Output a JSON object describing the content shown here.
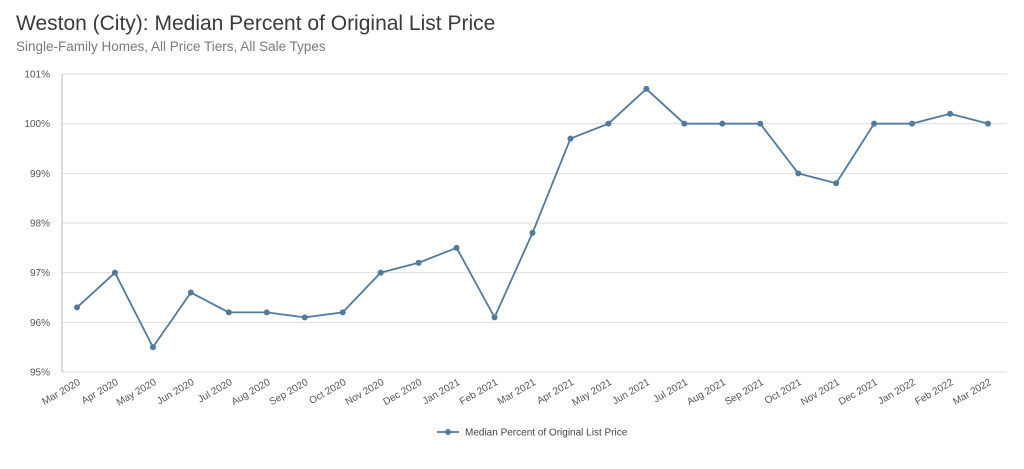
{
  "header": {
    "title": "Weston (City): Median Percent of Original List Price",
    "subtitle": "Single-Family Homes, All Price Tiers, All Sale Types"
  },
  "chart_data": {
    "type": "line",
    "title": "Weston (City): Median Percent of Original List Price",
    "subtitle": "Single-Family Homes, All Price Tiers, All Sale Types",
    "xlabel": "",
    "ylabel": "",
    "categories": [
      "Mar 2020",
      "Apr 2020",
      "May 2020",
      "Jun 2020",
      "Jul 2020",
      "Aug 2020",
      "Sep 2020",
      "Oct 2020",
      "Nov 2020",
      "Dec 2020",
      "Jan 2021",
      "Feb 2021",
      "Mar 2021",
      "Apr 2021",
      "May 2021",
      "Jun 2021",
      "Jul 2021",
      "Aug 2021",
      "Sep 2021",
      "Oct 2021",
      "Nov 2021",
      "Dec 2021",
      "Jan 2022",
      "Feb 2022",
      "Mar 2022"
    ],
    "series": [
      {
        "name": "Median Percent of Original List Price",
        "color": "#527a9c",
        "values": [
          96.3,
          97.0,
          95.5,
          96.6,
          96.2,
          96.2,
          96.1,
          96.2,
          97.0,
          97.2,
          97.5,
          96.1,
          97.8,
          99.7,
          100.0,
          100.7,
          100.0,
          100.0,
          100.0,
          99.0,
          98.8,
          100.0,
          100.0,
          100.2,
          100.0
        ]
      }
    ],
    "ylim": [
      95,
      101
    ],
    "yticks": [
      95,
      96,
      97,
      98,
      99,
      100,
      101
    ],
    "ytick_labels": [
      "95%",
      "96%",
      "97%",
      "98%",
      "99%",
      "100%",
      "101%"
    ],
    "grid": true,
    "legend": "bottom-center",
    "colors": {
      "line": "#527a9c",
      "grid": "#dedede",
      "axis": "#bbbbbb"
    }
  }
}
